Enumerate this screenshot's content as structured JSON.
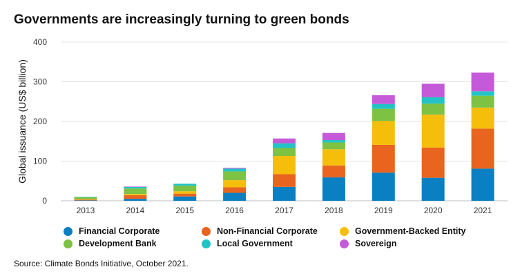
{
  "chart_data": {
    "type": "bar",
    "stacked": true,
    "title": "Governments are increasingly turning to green bonds",
    "xlabel": "",
    "ylabel": "Global issuance (US$ billion)",
    "ylim": [
      0,
      400
    ],
    "yticks": [
      0,
      100,
      200,
      300,
      400
    ],
    "grid": true,
    "legend_position": "bottom",
    "categories": [
      "2013",
      "2014",
      "2015",
      "2016",
      "2017",
      "2018",
      "2019",
      "2020",
      "2021"
    ],
    "series": [
      {
        "name": "Financial Corporate",
        "color": "#0a7fc2",
        "values": [
          1,
          5,
          11,
          20,
          35,
          59,
          71,
          58,
          81
        ]
      },
      {
        "name": "Non-Financial Corporate",
        "color": "#e8641f",
        "values": [
          2,
          9,
          7,
          14,
          32,
          30,
          70,
          76,
          101
        ]
      },
      {
        "name": "Government-Backed Entity",
        "color": "#f5be0b",
        "values": [
          1,
          3,
          6,
          18,
          46,
          41,
          60,
          83,
          53
        ]
      },
      {
        "name": "Development Bank",
        "color": "#7dc242",
        "values": [
          5,
          14,
          14,
          22,
          20,
          17,
          31,
          28,
          30
        ]
      },
      {
        "name": "Local Government",
        "color": "#22c3c7",
        "values": [
          1,
          4,
          5,
          7,
          12,
          6,
          12,
          16,
          11
        ]
      },
      {
        "name": "Sovereign",
        "color": "#c55ad8",
        "values": [
          0,
          1,
          0,
          2,
          12,
          18,
          22,
          34,
          47
        ]
      }
    ]
  },
  "source": "Source: Climate Bonds Initiative, October 2021."
}
